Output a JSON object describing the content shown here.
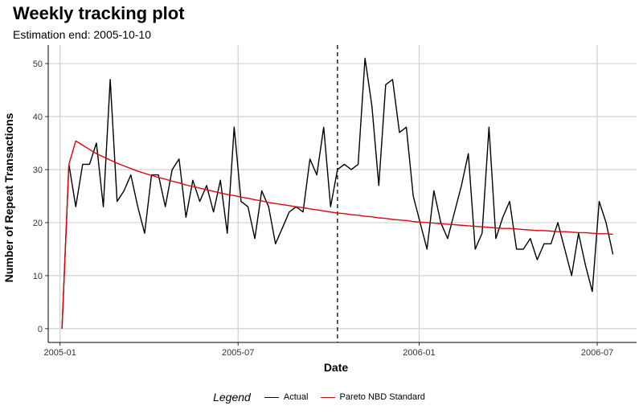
{
  "chart_data": {
    "type": "line",
    "title": "Weekly tracking plot",
    "subtitle": "Estimation end: 2005-10-10",
    "xlabel": "Date",
    "ylabel": "Number of Repeat Transactions",
    "x_start": "2005-01-03",
    "x_step_days": 7,
    "xlim": [
      "2004-12-20",
      "2006-08-10"
    ],
    "x_ticks": [
      {
        "date": "2005-01-01",
        "label": "2005-01"
      },
      {
        "date": "2005-07-01",
        "label": "2005-07"
      },
      {
        "date": "2006-01-01",
        "label": "2006-01"
      },
      {
        "date": "2006-07-01",
        "label": "2006-07"
      }
    ],
    "ylim": [
      -2.6,
      53.5
    ],
    "y_ticks": [
      0,
      10,
      20,
      30,
      40,
      50
    ],
    "grid": true,
    "estimation_end": "2005-10-10",
    "series": [
      {
        "name": "Actual",
        "color": "#000000",
        "values": [
          0,
          31,
          23,
          31,
          31,
          35,
          23,
          47,
          24,
          26,
          29,
          23,
          18,
          29,
          29,
          23,
          30,
          32,
          21,
          28,
          24,
          27,
          22,
          28,
          18,
          38,
          24,
          23,
          17,
          26,
          23,
          16,
          19,
          22,
          23,
          22,
          32,
          29,
          38,
          23,
          30,
          31,
          30,
          31,
          51,
          42,
          27,
          46,
          47,
          37,
          38,
          25,
          20,
          15,
          26,
          20,
          17,
          22,
          27,
          33,
          15,
          18,
          38,
          17,
          21,
          24,
          15,
          15,
          17,
          13,
          16,
          16,
          20,
          15,
          10,
          18,
          12,
          7,
          24,
          20,
          14
        ]
      },
      {
        "name": "Pareto NBD Standard",
        "color": "#e8000b",
        "values": [
          0,
          31,
          35.4,
          34.6,
          33.8,
          33.0,
          32.4,
          31.8,
          31.2,
          30.7,
          30.2,
          29.7,
          29.3,
          28.9,
          28.5,
          28.2,
          27.8,
          27.5,
          27.1,
          26.8,
          26.5,
          26.2,
          25.9,
          25.6,
          25.3,
          25.1,
          24.8,
          24.6,
          24.3,
          24.1,
          23.8,
          23.6,
          23.4,
          23.2,
          23.0,
          22.8,
          22.6,
          22.4,
          22.2,
          22.0,
          21.8,
          21.7,
          21.5,
          21.4,
          21.2,
          21.1,
          20.9,
          20.8,
          20.6,
          20.5,
          20.4,
          20.2,
          20.1,
          20.0,
          19.9,
          19.8,
          19.7,
          19.6,
          19.5,
          19.4,
          19.3,
          19.2,
          19.1,
          19.0,
          18.9,
          18.9,
          18.8,
          18.7,
          18.6,
          18.5,
          18.5,
          18.4,
          18.3,
          18.3,
          18.2,
          18.1,
          18.1,
          18.0,
          17.9,
          17.9,
          17.8
        ]
      }
    ]
  },
  "legend": {
    "title": "Legend",
    "items": [
      "Actual",
      "Pareto NBD Standard"
    ]
  }
}
